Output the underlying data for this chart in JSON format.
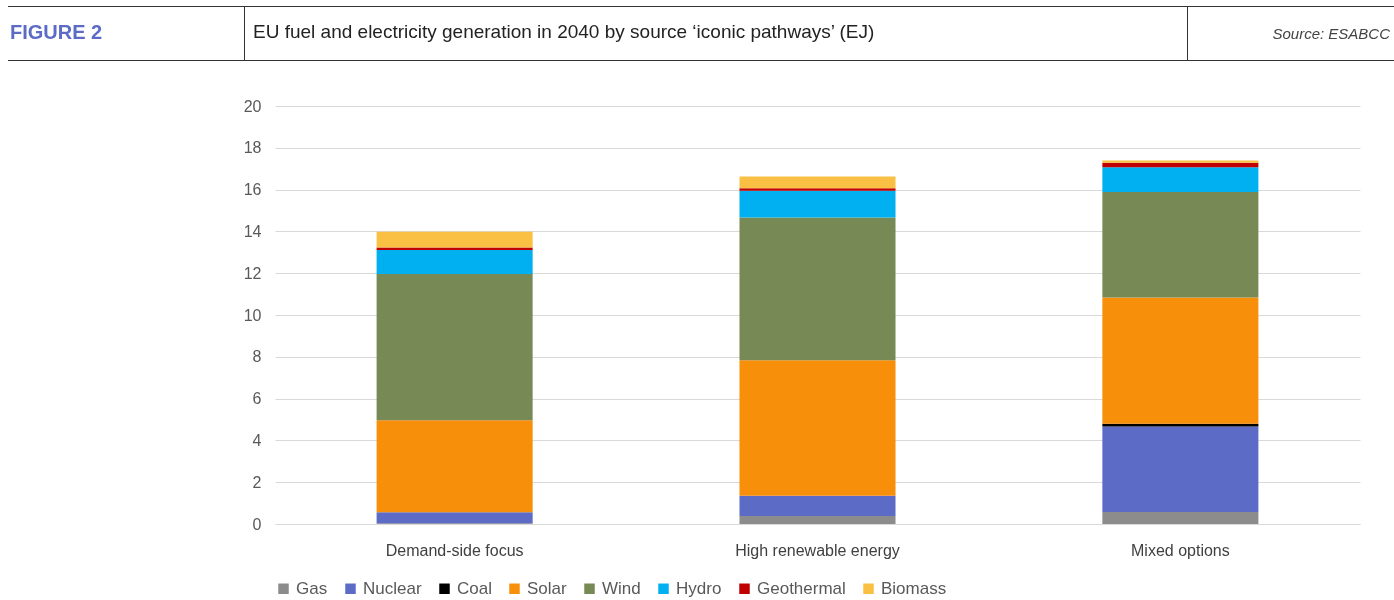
{
  "chart_data": {
    "type": "bar",
    "title": "EU fuel and electricity generation in 2040 by source ‘iconic pathways’ (EJ)",
    "annotations": [
      "FIGURE 2",
      "Source: ESABCC"
    ],
    "categories": [
      "Demand-side focus",
      "High renewable energy",
      "Mixed options"
    ],
    "stacked": true,
    "series": [
      {
        "name": "Gas",
        "color": "#8c8c8c",
        "values": [
          0.03,
          0.38,
          0.57
        ]
      },
      {
        "name": "Nuclear",
        "color": "#5b6bc6",
        "values": [
          0.53,
          0.97,
          4.09
        ]
      },
      {
        "name": "Coal",
        "color": "#000000",
        "values": [
          0,
          0,
          0.14
        ]
      },
      {
        "name": "Solar",
        "color": "#f78f0b",
        "values": [
          4.4,
          6.49,
          6.04
        ]
      },
      {
        "name": "Wind",
        "color": "#778a55",
        "values": [
          7.0,
          6.83,
          5.04
        ]
      },
      {
        "name": "Hydro",
        "color": "#00b0f0",
        "values": [
          1.15,
          1.27,
          1.19
        ]
      },
      {
        "name": "Geothermal",
        "color": "#c00000",
        "values": [
          0.12,
          0.13,
          0.21
        ]
      },
      {
        "name": "Biomass",
        "color": "#f9c044",
        "values": [
          0.75,
          0.56,
          0.11
        ]
      }
    ],
    "ylim": [
      0,
      20
    ],
    "yticks": [
      0,
      2,
      4,
      6,
      8,
      10,
      12,
      14,
      16,
      18,
      20
    ],
    "grid": "y",
    "legend": "bottom"
  }
}
